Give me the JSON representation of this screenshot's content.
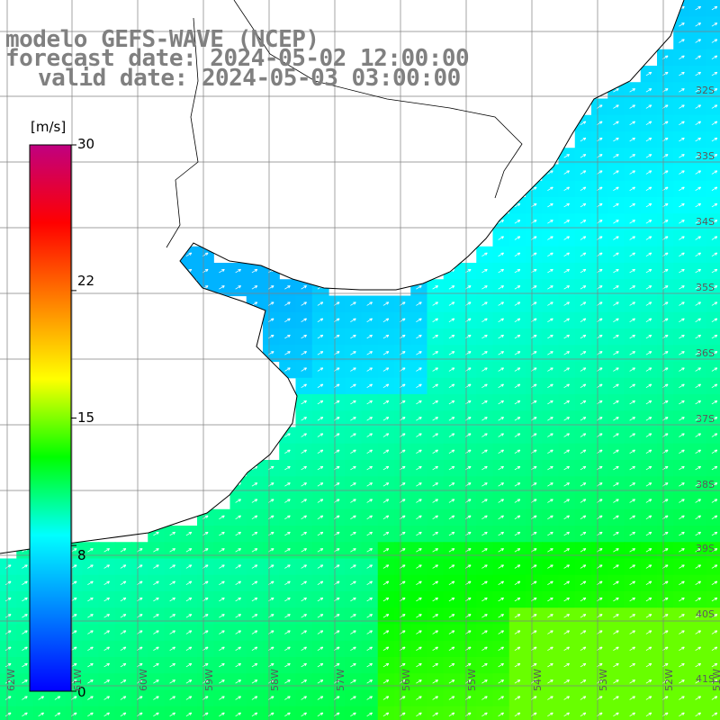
{
  "header": {
    "line1": "modelo GEFS-WAVE (NCEP)",
    "line2": "forecast date: 2024-05-02 12:00:00",
    "line3": "valid date: 2024-05-03 03:00:00"
  },
  "colorbar": {
    "unit": "[m/s]",
    "ticks": [
      "30",
      "22",
      "15",
      "8",
      "0"
    ],
    "tick_values": [
      30,
      22,
      15,
      8,
      0
    ],
    "range": [
      0,
      30
    ],
    "colors": [
      "#0000ff",
      "#0080ff",
      "#00ffff",
      "#00ff00",
      "#ffff00",
      "#ff8000",
      "#ff0000",
      "#c00080"
    ]
  },
  "map": {
    "lat_labels": [
      "32S",
      "33S",
      "34S",
      "35S",
      "36S",
      "37S",
      "38S",
      "39S",
      "40S",
      "41S"
    ],
    "lon_labels": [
      "62W",
      "61W",
      "60W",
      "59W",
      "58W",
      "57W",
      "56W",
      "55W",
      "54W",
      "53W",
      "52W",
      "51W"
    ],
    "land_color": "#ffffff",
    "grid_color": "#808080",
    "vector_color": "#ffffff"
  }
}
